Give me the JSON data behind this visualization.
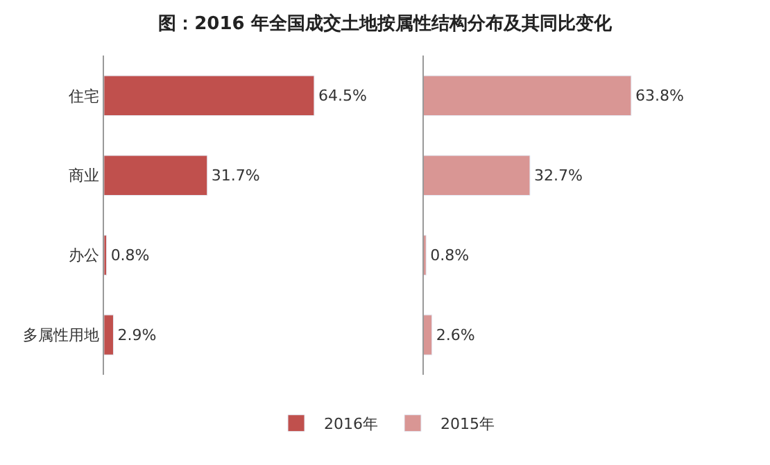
{
  "chart_data": [
    {
      "type": "bar",
      "orientation": "horizontal",
      "title": "图：2016 年全国成交土地按属性结构分布及其同比变化",
      "categories": [
        "住宅",
        "商业",
        "办公",
        "多属性用地"
      ],
      "series": [
        {
          "name": "2016年",
          "color": "#c0504d",
          "values": [
            64.5,
            31.7,
            0.8,
            2.9
          ],
          "value_labels": [
            "64.5%",
            "31.7%",
            "0.8%",
            "2.9%"
          ]
        }
      ],
      "tick_labels": "y",
      "legend": "bottom"
    },
    {
      "type": "bar",
      "orientation": "horizontal",
      "categories": [
        null,
        null,
        null,
        null
      ],
      "series": [
        {
          "name": "2015年",
          "color": "#d99694",
          "values": [
            63.8,
            32.7,
            0.8,
            2.6
          ],
          "value_labels": [
            "63.8%",
            "32.7%",
            "0.8%",
            "2.6%"
          ]
        }
      ],
      "tick_labels": false,
      "legend": "bottom"
    }
  ]
}
